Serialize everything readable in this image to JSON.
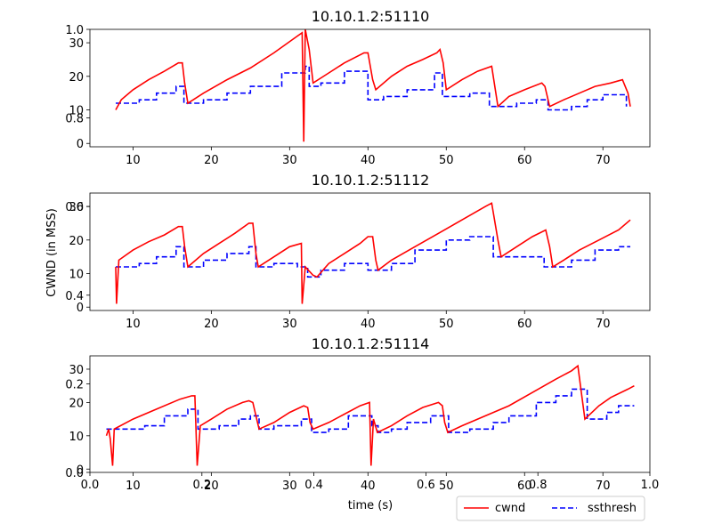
{
  "chart_data": {
    "type": "line",
    "ylabel": "CWND (in MSS)",
    "xlabel": "time (s)",
    "legend": {
      "placement": "bottom-right",
      "entries": [
        {
          "label": "cwnd",
          "color": "#ff0000",
          "style": "solid"
        },
        {
          "label": "ssthresh",
          "color": "#0000ff",
          "style": "dashed"
        }
      ]
    },
    "outer_axes": {
      "x_ticks": [
        "0.0",
        "0.2",
        "0.4",
        "0.6",
        "0.8",
        "1.0"
      ],
      "y_ticks": [
        "0.0",
        "0.2",
        "0.4",
        "0.6",
        "0.8",
        "1.0"
      ]
    },
    "subplots": [
      {
        "title": "10.10.1.2:51110",
        "xlim": [
          4.5,
          76
        ],
        "ylim": [
          -1,
          34
        ],
        "x_ticks": [
          10,
          20,
          30,
          40,
          50,
          60,
          70
        ],
        "y_ticks": [
          0,
          10,
          20,
          30
        ],
        "cwnd": [
          [
            7.8,
            10
          ],
          [
            8.5,
            13
          ],
          [
            10,
            16
          ],
          [
            12,
            19
          ],
          [
            14,
            21.5
          ],
          [
            15.8,
            24
          ],
          [
            16.3,
            24
          ],
          [
            16.6,
            18
          ],
          [
            17,
            12
          ],
          [
            19,
            15
          ],
          [
            22,
            19
          ],
          [
            25,
            22.5
          ],
          [
            28,
            27
          ],
          [
            31,
            32
          ],
          [
            31.6,
            33
          ],
          [
            31.8,
            0.5
          ],
          [
            32,
            34
          ],
          [
            32.5,
            28
          ],
          [
            33,
            18
          ],
          [
            35,
            21
          ],
          [
            37,
            24
          ],
          [
            39.5,
            27
          ],
          [
            40,
            27
          ],
          [
            40.6,
            19
          ],
          [
            41,
            16
          ],
          [
            43,
            20
          ],
          [
            45,
            23
          ],
          [
            47,
            25
          ],
          [
            48.8,
            27
          ],
          [
            49.2,
            28
          ],
          [
            49.6,
            24
          ],
          [
            50,
            16
          ],
          [
            52,
            19
          ],
          [
            54,
            21.5
          ],
          [
            55.8,
            23
          ],
          [
            56.2,
            17
          ],
          [
            56.6,
            11
          ],
          [
            58,
            14
          ],
          [
            60,
            16
          ],
          [
            62.2,
            18
          ],
          [
            62.6,
            17
          ],
          [
            63.2,
            11
          ],
          [
            65,
            13
          ],
          [
            67,
            15
          ],
          [
            69,
            17
          ],
          [
            71,
            18
          ],
          [
            72.5,
            19
          ],
          [
            73.2,
            15
          ],
          [
            73.5,
            11
          ]
        ],
        "ssthresh": [
          [
            7.8,
            12
          ],
          [
            10.8,
            12
          ],
          [
            10.8,
            13
          ],
          [
            13,
            13
          ],
          [
            13,
            15
          ],
          [
            15.5,
            15
          ],
          [
            15.5,
            17
          ],
          [
            16.5,
            17
          ],
          [
            16.5,
            12
          ],
          [
            19,
            12
          ],
          [
            19,
            13
          ],
          [
            22,
            13
          ],
          [
            22,
            15
          ],
          [
            25,
            15
          ],
          [
            25,
            17
          ],
          [
            29,
            17
          ],
          [
            29,
            21
          ],
          [
            32,
            21
          ],
          [
            32,
            23
          ],
          [
            32.5,
            23
          ],
          [
            32.5,
            17
          ],
          [
            34,
            17
          ],
          [
            34,
            18
          ],
          [
            37,
            18
          ],
          [
            37,
            21.5
          ],
          [
            40,
            21.5
          ],
          [
            40,
            13
          ],
          [
            42,
            13
          ],
          [
            42,
            14
          ],
          [
            45,
            14
          ],
          [
            45,
            16
          ],
          [
            48.5,
            16
          ],
          [
            48.5,
            21
          ],
          [
            49.5,
            21
          ],
          [
            49.5,
            14
          ],
          [
            53,
            14
          ],
          [
            53,
            15
          ],
          [
            55.5,
            15
          ],
          [
            55.5,
            11
          ],
          [
            59,
            11
          ],
          [
            59,
            12
          ],
          [
            61.5,
            12
          ],
          [
            61.5,
            13
          ],
          [
            63,
            13
          ],
          [
            63,
            10
          ],
          [
            66,
            10
          ],
          [
            66,
            11
          ],
          [
            68,
            11
          ],
          [
            68,
            13
          ],
          [
            70,
            13
          ],
          [
            70,
            14.5
          ],
          [
            73,
            14.5
          ],
          [
            73,
            11
          ]
        ]
      },
      {
        "title": "10.10.1.2:51112",
        "xlim": [
          4.5,
          76
        ],
        "ylim": [
          -1,
          34
        ],
        "x_ticks": [
          10,
          20,
          30,
          40,
          50,
          60,
          70
        ],
        "y_ticks": [
          0,
          10,
          20,
          30
        ],
        "cwnd": [
          [
            7.8,
            12
          ],
          [
            7.9,
            1
          ],
          [
            8.2,
            14
          ],
          [
            10,
            17
          ],
          [
            12,
            19.5
          ],
          [
            14,
            21.5
          ],
          [
            15.8,
            24
          ],
          [
            16.3,
            24
          ],
          [
            16.6,
            18
          ],
          [
            17,
            12
          ],
          [
            19,
            16
          ],
          [
            21,
            19
          ],
          [
            23,
            22
          ],
          [
            24.8,
            25
          ],
          [
            25.3,
            25
          ],
          [
            25.7,
            16
          ],
          [
            26,
            12
          ],
          [
            28,
            15
          ],
          [
            30,
            18
          ],
          [
            31.5,
            19
          ],
          [
            31.6,
            1
          ],
          [
            32,
            12
          ],
          [
            33,
            9.5
          ],
          [
            33.5,
            9
          ],
          [
            35,
            13
          ],
          [
            37,
            16
          ],
          [
            39,
            19
          ],
          [
            40,
            21
          ],
          [
            40.6,
            21
          ],
          [
            41,
            14
          ],
          [
            41.3,
            11
          ],
          [
            43,
            14
          ],
          [
            46,
            18
          ],
          [
            49,
            22
          ],
          [
            52,
            26
          ],
          [
            55,
            30
          ],
          [
            55.8,
            31
          ],
          [
            56.6,
            20
          ],
          [
            57,
            15
          ],
          [
            59,
            18
          ],
          [
            61,
            21
          ],
          [
            62.7,
            23
          ],
          [
            63.2,
            18
          ],
          [
            63.6,
            12
          ],
          [
            65,
            14
          ],
          [
            67,
            17
          ],
          [
            69.5,
            20
          ],
          [
            72,
            23
          ],
          [
            73.5,
            26
          ]
        ],
        "ssthresh": [
          [
            7.8,
            12
          ],
          [
            10.8,
            12
          ],
          [
            10.8,
            13
          ],
          [
            13,
            13
          ],
          [
            13,
            15
          ],
          [
            15.5,
            15
          ],
          [
            15.5,
            18
          ],
          [
            16.5,
            18
          ],
          [
            16.5,
            12
          ],
          [
            19,
            12
          ],
          [
            19,
            14
          ],
          [
            22,
            14
          ],
          [
            22,
            16
          ],
          [
            24.8,
            16
          ],
          [
            24.8,
            18
          ],
          [
            25.7,
            18
          ],
          [
            25.7,
            12
          ],
          [
            28,
            12
          ],
          [
            28,
            13
          ],
          [
            31,
            13
          ],
          [
            31,
            12
          ],
          [
            32.3,
            12
          ],
          [
            32.3,
            9
          ],
          [
            34,
            9
          ],
          [
            34,
            11
          ],
          [
            37,
            11
          ],
          [
            37,
            13
          ],
          [
            40,
            13
          ],
          [
            40,
            11
          ],
          [
            43,
            11
          ],
          [
            43,
            13
          ],
          [
            46,
            13
          ],
          [
            46,
            17
          ],
          [
            50,
            17
          ],
          [
            50,
            20
          ],
          [
            53,
            20
          ],
          [
            53,
            21
          ],
          [
            56,
            21
          ],
          [
            56,
            15
          ],
          [
            60,
            15
          ],
          [
            62.5,
            15
          ],
          [
            62.5,
            12
          ],
          [
            66,
            12
          ],
          [
            66,
            14
          ],
          [
            69,
            14
          ],
          [
            69,
            17
          ],
          [
            72,
            17
          ],
          [
            72,
            18
          ],
          [
            73.5,
            18
          ]
        ]
      },
      {
        "title": "10.10.1.2:51114",
        "xlim": [
          4.5,
          76
        ],
        "ylim": [
          -1,
          34
        ],
        "x_ticks": [
          10,
          20,
          30,
          40,
          50,
          60,
          70
        ],
        "y_ticks": [
          0,
          10,
          20,
          30
        ],
        "cwnd": [
          [
            6.6,
            10
          ],
          [
            6.9,
            12
          ],
          [
            7.1,
            9
          ],
          [
            7.4,
            1
          ],
          [
            7.6,
            12
          ],
          [
            10,
            15
          ],
          [
            13,
            18
          ],
          [
            16,
            21
          ],
          [
            17.5,
            22
          ],
          [
            17.9,
            22
          ],
          [
            18.2,
            1
          ],
          [
            18.6,
            13
          ],
          [
            20,
            15
          ],
          [
            22,
            18
          ],
          [
            24,
            20
          ],
          [
            24.8,
            20.5
          ],
          [
            25.3,
            20
          ],
          [
            25.7,
            16
          ],
          [
            26.1,
            12
          ],
          [
            28,
            14
          ],
          [
            30,
            17
          ],
          [
            31.8,
            19
          ],
          [
            32.3,
            18.5
          ],
          [
            32.6,
            14
          ],
          [
            33,
            12
          ],
          [
            35,
            14
          ],
          [
            37,
            16.5
          ],
          [
            39,
            19
          ],
          [
            40.2,
            20
          ],
          [
            40.4,
            1
          ],
          [
            40.7,
            15
          ],
          [
            41.2,
            11
          ],
          [
            43,
            13
          ],
          [
            45,
            16
          ],
          [
            47,
            18.5
          ],
          [
            49,
            20
          ],
          [
            49.5,
            19
          ],
          [
            49.8,
            14
          ],
          [
            50.2,
            11
          ],
          [
            52,
            13
          ],
          [
            55,
            16
          ],
          [
            58,
            19
          ],
          [
            61,
            23
          ],
          [
            64,
            27
          ],
          [
            66,
            29.5
          ],
          [
            66.8,
            31
          ],
          [
            67.3,
            22
          ],
          [
            67.7,
            15
          ],
          [
            69.5,
            19
          ],
          [
            71,
            21.5
          ],
          [
            73.2,
            24
          ],
          [
            74,
            25
          ]
        ],
        "ssthresh": [
          [
            6.6,
            12
          ],
          [
            7.8,
            12
          ],
          [
            7.8,
            12
          ],
          [
            11.5,
            12
          ],
          [
            11.5,
            13
          ],
          [
            14,
            13
          ],
          [
            14,
            16
          ],
          [
            17,
            16
          ],
          [
            17,
            18
          ],
          [
            18.3,
            18
          ],
          [
            18.3,
            12
          ],
          [
            21,
            12
          ],
          [
            21,
            13
          ],
          [
            23.5,
            13
          ],
          [
            23.5,
            15
          ],
          [
            25,
            15
          ],
          [
            25,
            16
          ],
          [
            26.1,
            16
          ],
          [
            26.1,
            12
          ],
          [
            28,
            12
          ],
          [
            28,
            13
          ],
          [
            31.5,
            13
          ],
          [
            31.5,
            15
          ],
          [
            32.8,
            15
          ],
          [
            32.8,
            11
          ],
          [
            35,
            11
          ],
          [
            35,
            12
          ],
          [
            37.5,
            12
          ],
          [
            37.5,
            16
          ],
          [
            40.5,
            16
          ],
          [
            40.5,
            13
          ],
          [
            41.3,
            13
          ],
          [
            41.3,
            11
          ],
          [
            43,
            11
          ],
          [
            43,
            12
          ],
          [
            45,
            12
          ],
          [
            45,
            14
          ],
          [
            48,
            14
          ],
          [
            48,
            16
          ],
          [
            50.3,
            16
          ],
          [
            50.3,
            11
          ],
          [
            53,
            11
          ],
          [
            53,
            12
          ],
          [
            56,
            12
          ],
          [
            56,
            14
          ],
          [
            58,
            14
          ],
          [
            58,
            16
          ],
          [
            61.5,
            16
          ],
          [
            61.5,
            20
          ],
          [
            64,
            20
          ],
          [
            64,
            22
          ],
          [
            66,
            22
          ],
          [
            66,
            24
          ],
          [
            68,
            24
          ],
          [
            68,
            15
          ],
          [
            70.5,
            15
          ],
          [
            70.5,
            17
          ],
          [
            72,
            17
          ],
          [
            72,
            19
          ],
          [
            74,
            19
          ]
        ]
      }
    ]
  }
}
